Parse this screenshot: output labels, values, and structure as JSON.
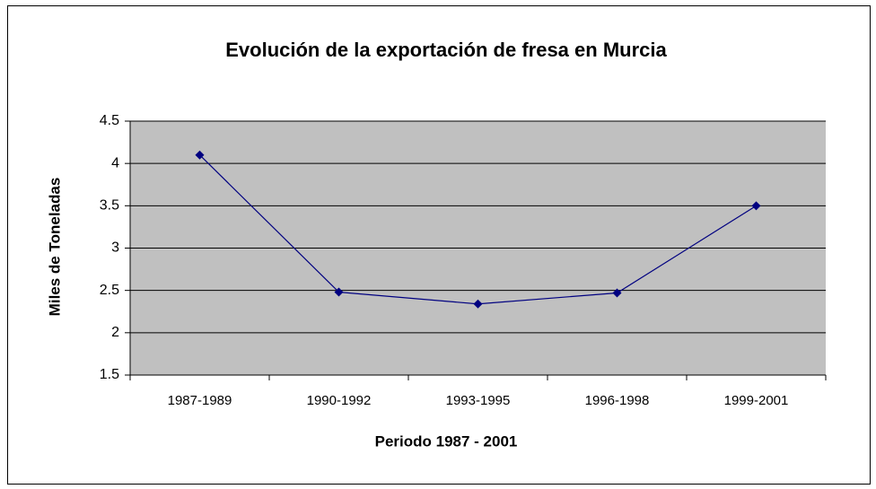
{
  "chart_data": {
    "type": "line",
    "title": "Evolución de la exportación de fresa en Murcia",
    "x_label": "Periodo 1987 - 2001",
    "y_label": "Miles de Toneladas",
    "categories": [
      "1987-1989",
      "1990-1992",
      "1993-1995",
      "1996-1998",
      "1999-2001"
    ],
    "values": [
      4.1,
      2.48,
      2.34,
      2.47,
      3.5
    ],
    "color": "#000080",
    "plot_background": "#c0c0c0",
    "ylim": [
      1.5,
      4.5
    ],
    "yticks": [
      1.5,
      2,
      2.5,
      3,
      3.5,
      4,
      4.5
    ],
    "grid": true
  }
}
